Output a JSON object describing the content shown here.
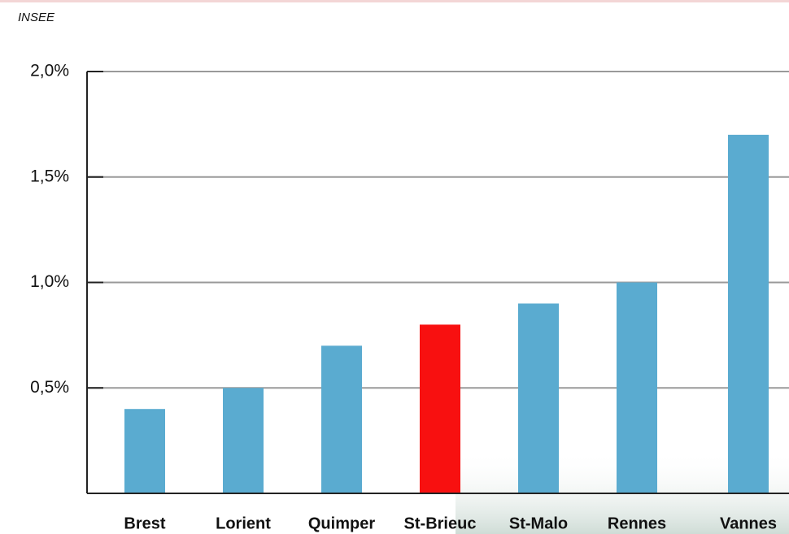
{
  "chart_data": {
    "type": "bar",
    "source": "INSEE",
    "categories": [
      "Brest",
      "Lorient",
      "Quimper",
      "St-Brieuc",
      "St-Malo",
      "Rennes",
      "Vannes"
    ],
    "values": [
      0.4,
      0.5,
      0.7,
      0.8,
      0.9,
      1.0,
      1.7
    ],
    "colors": [
      "#5aabd0",
      "#5aabd0",
      "#5aabd0",
      "#f81010",
      "#5aabd0",
      "#5aabd0",
      "#5aabd0"
    ],
    "ylim": [
      0,
      2
    ],
    "yticks": [
      {
        "value": 0.5,
        "label": "0,5%"
      },
      {
        "value": 1.0,
        "label": "1,0%"
      },
      {
        "value": 1.5,
        "label": "1,5%"
      },
      {
        "value": 2.0,
        "label": "2,0%"
      }
    ],
    "grid": true
  }
}
